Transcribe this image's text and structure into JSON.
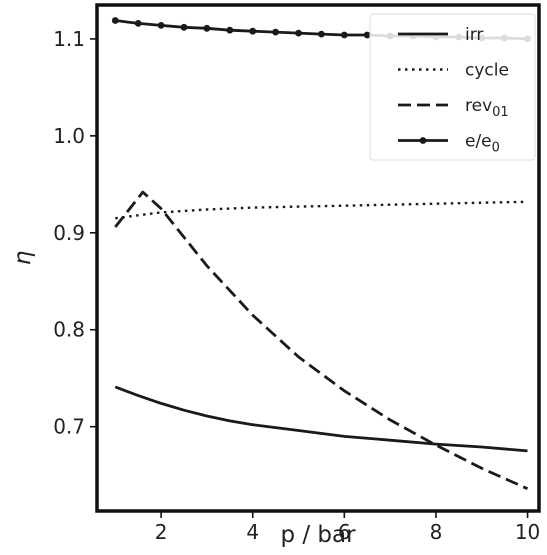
{
  "chart_data": {
    "type": "line",
    "xlabel": "p / bar",
    "ylabel": "η",
    "xlim": [
      0.6,
      10.25
    ],
    "ylim": [
      0.613,
      1.135
    ],
    "xticks": [
      2,
      4,
      6,
      8,
      10
    ],
    "yticks": [
      0.7,
      0.8,
      0.9,
      1.0,
      1.1
    ],
    "xtick_labels": [
      "2",
      "4",
      "6",
      "8",
      "10"
    ],
    "ytick_labels": [
      "0.7",
      "0.8",
      "0.9",
      "1.0",
      "1.1"
    ],
    "grid": false,
    "legend_position": "top-right",
    "series": [
      {
        "name": "irr",
        "style": "solid",
        "x": [
          1.0,
          1.5,
          2.0,
          2.5,
          3.0,
          3.5,
          4.0,
          5.0,
          6.0,
          7.0,
          8.0,
          9.0,
          10.0
        ],
        "y": [
          0.741,
          0.732,
          0.724,
          0.717,
          0.711,
          0.706,
          0.702,
          0.696,
          0.69,
          0.686,
          0.682,
          0.679,
          0.675
        ]
      },
      {
        "name": "cycle",
        "style": "dotted",
        "x": [
          1.0,
          1.5,
          2.0,
          3.0,
          4.0,
          5.0,
          6.0,
          7.0,
          8.0,
          9.0,
          10.0
        ],
        "y": [
          0.915,
          0.918,
          0.921,
          0.924,
          0.926,
          0.927,
          0.928,
          0.929,
          0.93,
          0.931,
          0.932
        ]
      },
      {
        "name": "rev",
        "name_sub": "01",
        "style": "dashed",
        "x": [
          1.0,
          1.6,
          2.0,
          3.0,
          4.0,
          5.0,
          6.0,
          7.0,
          8.0,
          9.0,
          10.0
        ],
        "y": [
          0.906,
          0.942,
          0.925,
          0.866,
          0.815,
          0.772,
          0.737,
          0.707,
          0.681,
          0.657,
          0.636
        ]
      },
      {
        "name": "e/e",
        "name_sub": "0",
        "style": "solid-marker",
        "x": [
          1.0,
          1.5,
          2.0,
          2.5,
          3.0,
          3.5,
          4.0,
          4.5,
          5.0,
          5.5,
          6.0,
          6.5,
          7.0,
          7.5,
          8.0,
          8.5,
          9.0,
          9.5,
          10.0
        ],
        "y": [
          1.119,
          1.116,
          1.114,
          1.112,
          1.111,
          1.109,
          1.108,
          1.107,
          1.106,
          1.105,
          1.104,
          1.104,
          1.103,
          1.103,
          1.102,
          1.102,
          1.101,
          1.101,
          1.1
        ]
      }
    ],
    "legend": [
      {
        "label": "irr",
        "sub": ""
      },
      {
        "label": "cycle",
        "sub": ""
      },
      {
        "label": "rev",
        "sub": "01"
      },
      {
        "label": "e/e",
        "sub": "0"
      }
    ]
  }
}
